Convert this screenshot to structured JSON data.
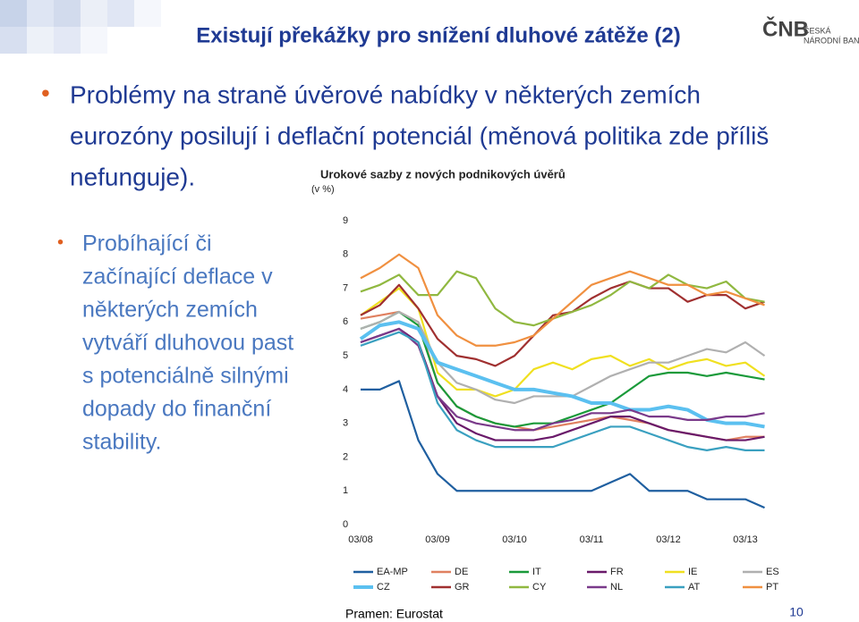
{
  "slide": {
    "title": "Existují překážky pro snížení dluhové zátěže (2)",
    "logo": {
      "main": "ČNB",
      "line1": "ČESKÁ",
      "line2": "NÁRODNÍ BANKA"
    },
    "bullet": [
      "Problémy na straně úvěrové nabídky v některých zemích",
      "eurozóny posilují i deflační potenciál (měnová politika zde příliš",
      "nefunguje)."
    ],
    "subbullet": [
      "Probíhající či",
      "začínající deflace v",
      "některých zemích",
      "vytváří dluhovou past",
      "s potenciálně silnými",
      "dopady do finanční",
      "stability."
    ],
    "source": "Pramen: Eurostat",
    "page": "10"
  },
  "chart_data": {
    "type": "line",
    "title": "Urokové sazby z nových podnikových úvěrů",
    "subtitle": "(v %)",
    "categories": [
      "03/08",
      null,
      null,
      null,
      "03/09",
      null,
      null,
      null,
      "03/10",
      null,
      null,
      null,
      "03/11",
      null,
      null,
      null,
      "03/12",
      null,
      null,
      null,
      "03/13",
      null
    ],
    "ylim": [
      0,
      9
    ],
    "yticks": [
      0,
      1,
      2,
      3,
      4,
      5,
      6,
      7,
      8,
      9
    ],
    "series": [
      {
        "name": "EA-MP",
        "color": "#1f5fa0",
        "values": [
          4,
          4,
          4.25,
          2.5,
          1.5,
          1,
          1,
          1,
          1,
          1,
          1,
          1,
          1,
          1.25,
          1.5,
          1,
          1,
          1,
          0.75,
          0.75,
          0.75,
          0.5
        ]
      },
      {
        "name": "DE",
        "color": "#e08060",
        "values": [
          6.1,
          6.2,
          6.3,
          6.0,
          4.2,
          3.5,
          3.2,
          3.0,
          2.9,
          2.8,
          2.9,
          3.0,
          3.1,
          3.2,
          3.1,
          3.0,
          2.8,
          2.7,
          2.6,
          2.5,
          2.6,
          2.6
        ]
      },
      {
        "name": "IT",
        "color": "#1a9a3a",
        "values": [
          5.8,
          6.0,
          6.3,
          5.9,
          4.2,
          3.5,
          3.2,
          3.0,
          2.9,
          3.0,
          3.0,
          3.2,
          3.4,
          3.6,
          4.0,
          4.4,
          4.5,
          4.5,
          4.4,
          4.5,
          4.4,
          4.3
        ]
      },
      {
        "name": "FR",
        "color": "#6a1a6a",
        "values": [
          5.4,
          5.6,
          5.8,
          5.4,
          3.8,
          3.0,
          2.7,
          2.5,
          2.5,
          2.5,
          2.6,
          2.8,
          3.0,
          3.2,
          3.2,
          3.0,
          2.8,
          2.7,
          2.6,
          2.5,
          2.5,
          2.6
        ]
      },
      {
        "name": "IE",
        "color": "#f0e020",
        "values": [
          6.2,
          6.6,
          7.0,
          6.4,
          4.5,
          4.0,
          4.0,
          3.8,
          4.0,
          4.6,
          4.8,
          4.6,
          4.9,
          5.0,
          4.7,
          4.9,
          4.6,
          4.8,
          4.9,
          4.7,
          4.8,
          4.4
        ]
      },
      {
        "name": "ES",
        "color": "#b0b0b0",
        "values": [
          5.8,
          6.0,
          6.3,
          6.0,
          4.8,
          4.2,
          4.0,
          3.7,
          3.6,
          3.8,
          3.8,
          3.8,
          4.1,
          4.4,
          4.6,
          4.8,
          4.8,
          5.0,
          5.2,
          5.1,
          5.4,
          5.0
        ]
      },
      {
        "name": "CZ",
        "color": "#5bc0f0",
        "values": [
          5.5,
          5.9,
          6.0,
          5.8,
          4.8,
          4.6,
          4.4,
          4.2,
          4.0,
          4.0,
          3.9,
          3.8,
          3.6,
          3.6,
          3.4,
          3.4,
          3.5,
          3.4,
          3.1,
          3.0,
          3.0,
          2.9
        ]
      },
      {
        "name": "GR",
        "color": "#a03030",
        "values": [
          6.2,
          6.5,
          7.1,
          6.4,
          5.5,
          5.0,
          4.9,
          4.7,
          5.0,
          5.6,
          6.2,
          6.3,
          6.7,
          7.0,
          7.2,
          7.0,
          7.0,
          6.6,
          6.8,
          6.8,
          6.4,
          6.6
        ]
      },
      {
        "name": "CY",
        "color": "#90b840",
        "values": [
          6.9,
          7.1,
          7.4,
          6.8,
          6.8,
          7.5,
          7.3,
          6.4,
          6.0,
          5.9,
          6.1,
          6.3,
          6.5,
          6.8,
          7.2,
          7.0,
          7.4,
          7.1,
          7.0,
          7.2,
          6.7,
          6.6
        ]
      },
      {
        "name": "NL",
        "color": "#7a3a8a",
        "values": [
          5.4,
          5.6,
          5.8,
          5.3,
          3.8,
          3.2,
          3.0,
          2.9,
          2.8,
          2.8,
          3.0,
          3.1,
          3.3,
          3.3,
          3.4,
          3.2,
          3.2,
          3.1,
          3.1,
          3.2,
          3.2,
          3.3
        ]
      },
      {
        "name": "AT",
        "color": "#3aa0c0",
        "values": [
          5.3,
          5.5,
          5.7,
          5.4,
          3.6,
          2.8,
          2.5,
          2.3,
          2.3,
          2.3,
          2.3,
          2.5,
          2.7,
          2.9,
          2.9,
          2.7,
          2.5,
          2.3,
          2.2,
          2.3,
          2.2,
          2.2
        ]
      },
      {
        "name": "PT",
        "color": "#f09040",
        "values": [
          7.3,
          7.6,
          8.0,
          7.6,
          6.2,
          5.6,
          5.3,
          5.3,
          5.4,
          5.6,
          6.1,
          6.6,
          7.1,
          7.3,
          7.5,
          7.3,
          7.1,
          7.1,
          6.8,
          6.9,
          6.7,
          6.5
        ]
      }
    ]
  }
}
